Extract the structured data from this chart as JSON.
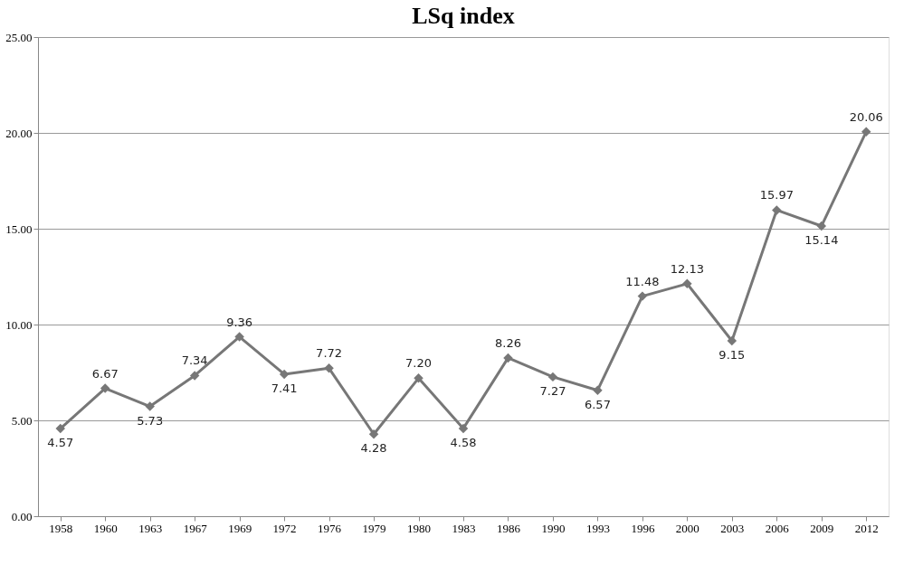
{
  "chart_data": {
    "type": "line",
    "title": "LSq index",
    "categories": [
      "1958",
      "1960",
      "1963",
      "1967",
      "1969",
      "1972",
      "1976",
      "1979",
      "1980",
      "1983",
      "1986",
      "1990",
      "1993",
      "1996",
      "2000",
      "2003",
      "2006",
      "2009",
      "2012"
    ],
    "series": [
      {
        "color": "#777777",
        "values": [
          4.57,
          6.67,
          5.73,
          7.34,
          9.36,
          7.41,
          7.72,
          4.28,
          7.2,
          4.58,
          8.26,
          7.27,
          6.57,
          11.48,
          12.13,
          9.15,
          15.97,
          15.14,
          20.06
        ],
        "value_labels": [
          "4.57",
          "6.67",
          "5.73",
          "7.34",
          "9.36",
          "7.41",
          "7.72",
          "4.28",
          "7.20",
          "4.58",
          "8.26",
          "7.27",
          "6.57",
          "11.48",
          "12.13",
          "9.15",
          "15.97",
          "15.14",
          "20.06"
        ]
      }
    ],
    "ylim": [
      0,
      25
    ],
    "yticks": [
      {
        "value": 0,
        "label": "0.00"
      },
      {
        "value": 5,
        "label": "5.00"
      },
      {
        "value": 10,
        "label": "10.00"
      },
      {
        "value": 15,
        "label": "15.00"
      },
      {
        "value": 20,
        "label": "20.00"
      },
      {
        "value": 25,
        "label": "25.00"
      }
    ],
    "grid": "y",
    "marker": "diamond",
    "line_style": "solid"
  }
}
